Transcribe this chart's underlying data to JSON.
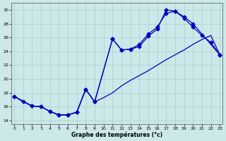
{
  "xlabel": "Graphe des températures (°c)",
  "xlim": [
    -0.3,
    23.3
  ],
  "ylim": [
    13.5,
    31
  ],
  "yticks": [
    14,
    16,
    18,
    20,
    22,
    24,
    26,
    28,
    30
  ],
  "xticks": [
    0,
    1,
    2,
    3,
    4,
    5,
    6,
    7,
    8,
    9,
    10,
    11,
    12,
    13,
    14,
    15,
    16,
    17,
    18,
    19,
    20,
    21,
    22,
    23
  ],
  "background_color": "#cce8e8",
  "grid_color": "#aacfcf",
  "line_color": "#0000bb",
  "curve1_x": [
    0,
    1,
    2,
    3,
    4,
    5,
    6,
    7,
    8,
    9,
    11,
    12,
    13,
    14,
    15,
    16,
    17,
    18,
    19,
    20,
    23
  ],
  "curve1_y": [
    17.5,
    16.7,
    16.1,
    16.0,
    15.3,
    14.8,
    14.8,
    15.2,
    18.5,
    16.7,
    25.8,
    24.2,
    24.3,
    24.7,
    26.2,
    27.2,
    30.0,
    29.8,
    29.0,
    28.0,
    23.5
  ],
  "curve2_x": [
    0,
    1,
    2,
    3,
    4,
    5,
    6,
    7,
    8,
    9,
    10,
    11,
    12,
    13,
    14,
    15,
    16,
    17,
    18,
    19,
    20,
    21,
    22,
    23
  ],
  "curve2_y": [
    17.5,
    16.7,
    16.1,
    16.0,
    15.3,
    14.8,
    14.8,
    15.2,
    18.5,
    16.7,
    17.3,
    18.0,
    19.0,
    19.8,
    20.5,
    21.2,
    22.0,
    22.8,
    23.5,
    24.2,
    25.0,
    25.7,
    26.3,
    23.5
  ],
  "curve3_x": [
    0,
    2,
    3,
    4,
    5,
    6,
    7,
    8,
    9,
    11,
    12,
    13,
    14,
    15,
    16,
    17,
    18,
    19,
    20,
    21,
    22,
    23
  ],
  "curve3_y": [
    17.5,
    16.1,
    16.0,
    15.3,
    14.8,
    14.8,
    15.2,
    18.5,
    16.7,
    25.8,
    24.2,
    24.3,
    25.0,
    26.5,
    27.5,
    29.5,
    29.8,
    28.8,
    27.5,
    26.3,
    25.3,
    23.5
  ]
}
